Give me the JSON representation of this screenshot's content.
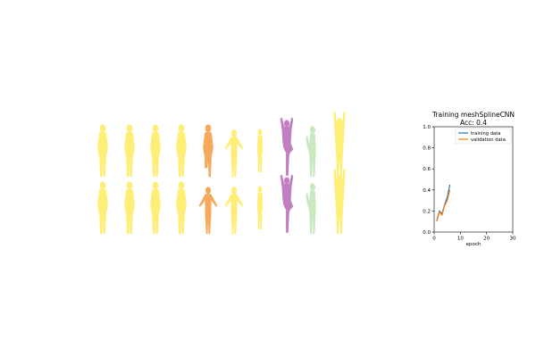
{
  "silhouettes": {
    "rows": [
      [
        "standing",
        "standing",
        "standing",
        "standing",
        "standing-bent",
        "arms-out",
        "standing-narrow",
        "tree-pose",
        "leaning",
        "arms-up"
      ],
      [
        "standing",
        "standing",
        "standing",
        "standing",
        "arms-out",
        "arms-out",
        "standing-narrow",
        "tree-pose",
        "leaning",
        "arms-up"
      ]
    ],
    "colors": [
      "#ffee75",
      "#ffee75",
      "#ffee75",
      "#ffee75",
      "#f4a95b",
      "#ffee75",
      "#ffee75",
      "#c07fc0",
      "#c9e8c0",
      "#ffee75"
    ]
  },
  "chart_data": {
    "type": "line",
    "title": "Training meshSplineCNN",
    "subtitle": "Acc: 0.4",
    "xlabel": "epoch",
    "ylabel": "",
    "xlim": [
      0,
      30
    ],
    "ylim": [
      0,
      1.0
    ],
    "xticks": [
      0,
      10,
      20,
      30
    ],
    "yticks": [
      0.0,
      0.2,
      0.4,
      0.6,
      0.8,
      1.0
    ],
    "grid": false,
    "legend_position": "top-right",
    "series": [
      {
        "name": "training data",
        "color": "#1f77b4",
        "x": [
          1,
          2,
          3,
          4,
          5,
          6
        ],
        "y": [
          0.11,
          0.2,
          0.17,
          0.26,
          0.33,
          0.45
        ]
      },
      {
        "name": "validation data",
        "color": "#ff7f0e",
        "x": [
          1,
          2,
          3,
          4,
          5,
          6
        ],
        "y": [
          0.1,
          0.19,
          0.16,
          0.25,
          0.3,
          0.4
        ]
      }
    ]
  }
}
